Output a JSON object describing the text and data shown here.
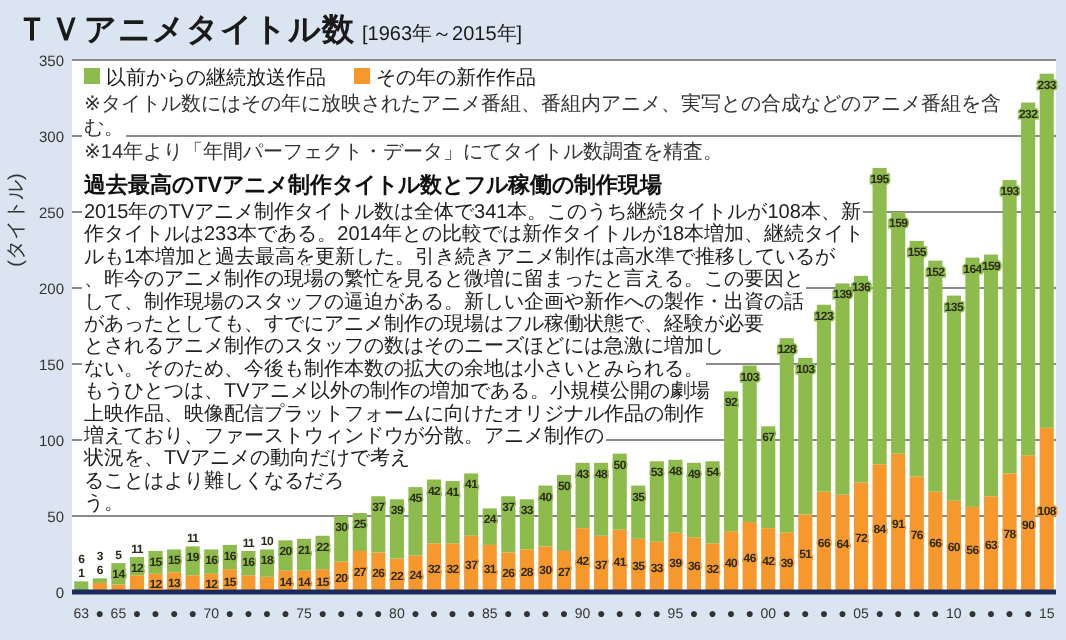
{
  "chart_data": {
    "type": "bar",
    "stacked": true,
    "title": "ＴＶアニメタイトル数",
    "subtitle": "[1963年～2015年]",
    "ylabel": "(タイトル)",
    "categories": [
      "63",
      "●",
      "65",
      "●",
      "●",
      "●",
      "●",
      "70",
      "●",
      "●",
      "●",
      "●",
      "75",
      "●",
      "●",
      "●",
      "●",
      "80",
      "●",
      "●",
      "●",
      "●",
      "85",
      "●",
      "●",
      "●",
      "●",
      "90",
      "●",
      "●",
      "●",
      "●",
      "95",
      "●",
      "●",
      "●",
      "●",
      "00",
      "●",
      "●",
      "●",
      "●",
      "05",
      "●",
      "●",
      "●",
      "●",
      "10",
      "●",
      "●",
      "●",
      "●",
      "15"
    ],
    "series": [
      {
        "name": "その年の新作作品",
        "color": "#f7982d",
        "values": [
          1,
          6,
          5,
          11,
          12,
          13,
          11,
          12,
          15,
          11,
          10,
          14,
          14,
          15,
          20,
          27,
          26,
          22,
          24,
          32,
          32,
          37,
          31,
          26,
          28,
          30,
          27,
          42,
          37,
          41,
          35,
          33,
          39,
          36,
          32,
          40,
          46,
          42,
          39,
          51,
          66,
          64,
          72,
          84,
          91,
          76,
          66,
          60,
          56,
          63,
          78,
          90,
          108
        ]
      },
      {
        "name": "以前からの継続放送作品",
        "color": "#8dbb4c",
        "values": [
          6,
          3,
          14,
          12,
          15,
          15,
          19,
          16,
          16,
          16,
          18,
          20,
          21,
          22,
          30,
          25,
          37,
          39,
          45,
          42,
          41,
          41,
          24,
          37,
          33,
          40,
          50,
          43,
          48,
          50,
          35,
          53,
          48,
          49,
          54,
          92,
          103,
          67,
          128,
          103,
          123,
          139,
          136,
          195,
          159,
          155,
          152,
          135,
          164,
          159,
          193,
          232,
          233
        ]
      }
    ],
    "ylim": [
      0,
      350
    ],
    "yticks": [
      0,
      50,
      100,
      150,
      200,
      250,
      300,
      350
    ],
    "grid": "y",
    "legend": "top left",
    "data_labels": true,
    "annotations": [
      "※タイトル数にはその年に放映されたアニメ番組、番組内アニメ、実写との合成などのアニメ番組を含む。",
      "※14年より「年間パーフェクト・データ」にてタイトル数調査を精査。",
      "過去最高のTVアニメ制作タイトル数とフル稼働の制作現場",
      "2015年のTVアニメ制作タイトル数は全体で341本。このうち継続タイトルが108本、新作タイトルは233本である。2014年との比較では新作タイトルが18本増加、継続タイトルも1本増加と過去最高を更新した。引き続きアニメ制作は高水準で推移しているが、昨今のアニメ制作の現場の繁忙を見ると微増に留まったと言える。この要因として、制作現場のスタッフの逼迫がある。新しい企画や新作への製作・出資の話があったとしても、すでにアニメ制作の現場はフル稼働状態で、経験が必要とされるアニメ制作のスタッフの数はそのニーズほどには急激に増加しない。そのため、今後も制作本数の拡大の余地は小さいとみられる。もうひとつは、TVアニメ以外の制作の増加である。小規模公開の劇場上映作品、映像配信プラットフォームに向けたオリジナル作品の制作増えており、ファーストウィンドウが分散。アニメ制作の状況を、TVアニメの動向だけで考えることはより難しくなるだろう。"
    ]
  }
}
